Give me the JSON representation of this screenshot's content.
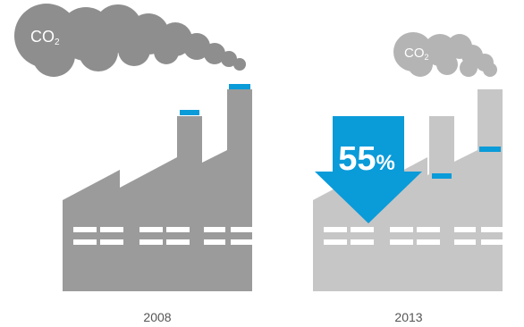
{
  "colors": {
    "factory_dark": "#9b9b9b",
    "factory_light": "#c6c6c6",
    "smoke_dark": "#8e8e8e",
    "smoke_light": "#b4b4b4",
    "accent": "#0a9bd9",
    "window": "#ffffff"
  },
  "panels": [
    {
      "year": "2008",
      "co2": {
        "main": "CO",
        "sub": "2"
      }
    },
    {
      "year": "2013",
      "co2": {
        "main": "CO",
        "sub": "2"
      }
    }
  ],
  "reduction": {
    "value": "55",
    "unit": "%"
  }
}
